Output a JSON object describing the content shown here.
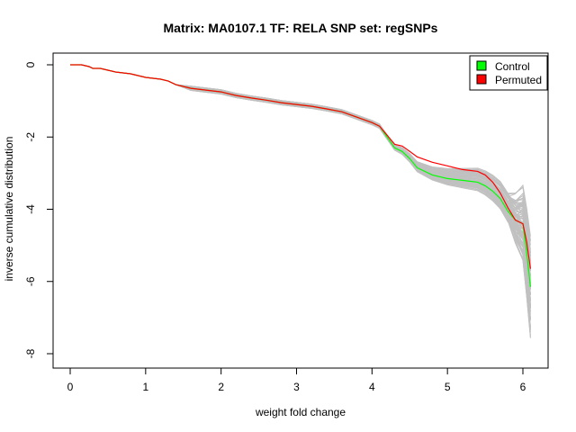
{
  "chart_data": {
    "type": "line",
    "title": "Matrix: MA0107.1 TF: RELA SNP set: regSNPs",
    "xlabel": "weight fold change",
    "ylabel": "inverse cumulative distribution",
    "xlim": [
      0,
      6.1
    ],
    "ylim": [
      -8.5,
      0.3
    ],
    "xticks": [
      0,
      1,
      2,
      3,
      4,
      5,
      6
    ],
    "yticks": [
      0,
      -2,
      -4,
      -6,
      -8
    ],
    "grid": false,
    "legend_position": "top-right",
    "legend": [
      {
        "label": "Control",
        "color": "#00ff00"
      },
      {
        "label": "Permuted",
        "color": "#ff0000"
      }
    ],
    "series": [
      {
        "name": "Control",
        "color": "#00ff00",
        "x": [
          0,
          0.15,
          0.25,
          0.3,
          0.4,
          0.5,
          0.6,
          0.8,
          1.0,
          1.2,
          1.3,
          1.4,
          1.6,
          1.8,
          2.0,
          2.2,
          2.4,
          2.6,
          2.8,
          3.0,
          3.2,
          3.4,
          3.6,
          3.8,
          4.0,
          4.1,
          4.2,
          4.3,
          4.4,
          4.5,
          4.6,
          4.8,
          5.0,
          5.2,
          5.4,
          5.5,
          5.6,
          5.7,
          5.8,
          5.9,
          6.0,
          6.05,
          6.1
        ],
        "y": [
          0,
          0,
          -0.05,
          -0.1,
          -0.1,
          -0.15,
          -0.2,
          -0.25,
          -0.35,
          -0.4,
          -0.45,
          -0.55,
          -0.65,
          -0.7,
          -0.75,
          -0.85,
          -0.92,
          -0.98,
          -1.05,
          -1.1,
          -1.15,
          -1.22,
          -1.3,
          -1.45,
          -1.6,
          -1.7,
          -2.0,
          -2.3,
          -2.4,
          -2.6,
          -2.85,
          -3.05,
          -3.15,
          -3.2,
          -3.25,
          -3.35,
          -3.5,
          -3.7,
          -4.05,
          -4.3,
          -4.4,
          -5.2,
          -6.15
        ]
      },
      {
        "name": "Permuted",
        "color": "#ff0000",
        "x": [
          0,
          0.15,
          0.25,
          0.3,
          0.4,
          0.5,
          0.6,
          0.8,
          1.0,
          1.2,
          1.3,
          1.4,
          1.6,
          1.8,
          2.0,
          2.2,
          2.4,
          2.6,
          2.8,
          3.0,
          3.2,
          3.4,
          3.6,
          3.8,
          4.0,
          4.1,
          4.2,
          4.3,
          4.4,
          4.5,
          4.6,
          4.8,
          5.0,
          5.2,
          5.4,
          5.5,
          5.6,
          5.7,
          5.8,
          5.9,
          6.0,
          6.05,
          6.1
        ],
        "y": [
          0,
          0,
          -0.05,
          -0.1,
          -0.1,
          -0.15,
          -0.2,
          -0.25,
          -0.35,
          -0.4,
          -0.45,
          -0.55,
          -0.65,
          -0.7,
          -0.75,
          -0.85,
          -0.92,
          -0.98,
          -1.05,
          -1.1,
          -1.15,
          -1.22,
          -1.3,
          -1.45,
          -1.6,
          -1.7,
          -1.95,
          -2.2,
          -2.25,
          -2.4,
          -2.55,
          -2.7,
          -2.8,
          -2.9,
          -2.95,
          -3.05,
          -3.25,
          -3.55,
          -3.95,
          -4.3,
          -4.4,
          -4.9,
          -5.65
        ]
      }
    ]
  }
}
